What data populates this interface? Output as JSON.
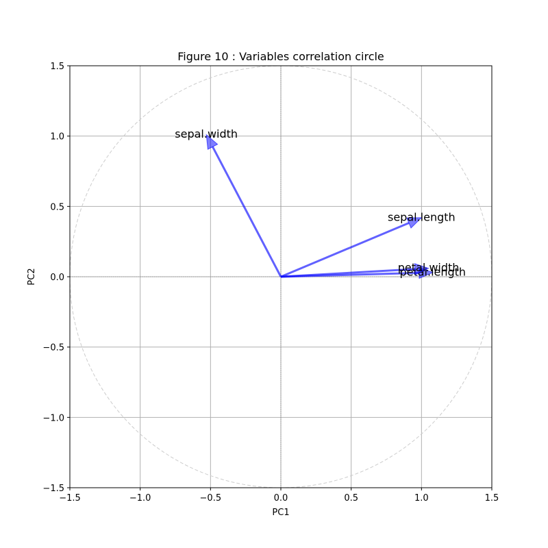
{
  "chart_data": {
    "type": "scatter",
    "subtype": "correlation-circle",
    "title": "Figure 10 : Variables correlation circle",
    "xlabel": "PC1",
    "ylabel": "PC2",
    "xlim": [
      -1.5,
      1.5
    ],
    "ylim": [
      -1.5,
      1.5
    ],
    "xticks": [
      -1.5,
      -1.0,
      -0.5,
      0.0,
      0.5,
      1.0,
      1.5
    ],
    "yticks": [
      -1.5,
      -1.0,
      -0.5,
      0.0,
      0.5,
      1.0,
      1.5
    ],
    "xtick_labels": [
      "−1.5",
      "−1.0",
      "−0.5",
      "0.0",
      "0.5",
      "1.0",
      "1.5"
    ],
    "ytick_labels": [
      "−1.5",
      "−1.0",
      "−0.5",
      "0.0",
      "0.5",
      "1.0",
      "1.5"
    ],
    "grid": true,
    "circle_radius": 1.5,
    "vectors": [
      {
        "label": "sepal.length",
        "x": 1.0,
        "y": 0.42
      },
      {
        "label": "sepal.width",
        "x": -0.53,
        "y": 1.01
      },
      {
        "label": "petal.length",
        "x": 1.08,
        "y": 0.03
      },
      {
        "label": "petal.width",
        "x": 1.05,
        "y": 0.06
      }
    ],
    "colors": {
      "vector": "#0000ff",
      "grid": "#b0b0b0",
      "circle": "#cccccc"
    }
  }
}
